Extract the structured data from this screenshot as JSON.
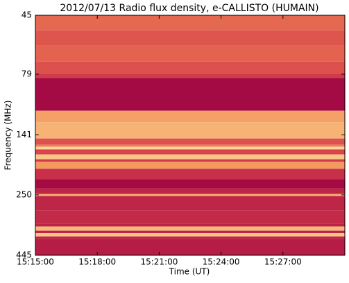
{
  "chart_data": {
    "type": "spectrogram",
    "title": "2012/07/13  Radio flux density, e-CALLISTO (HUMAIN)",
    "xlabel": "Time (UT)",
    "ylabel": "Frequency (MHz)",
    "xlim": [
      54900,
      55800
    ],
    "xticks": [
      {
        "value": 54900,
        "label": "15:15:00"
      },
      {
        "value": 55080,
        "label": "15:18:00"
      },
      {
        "value": 55260,
        "label": "15:21:00"
      },
      {
        "value": 55440,
        "label": "15:24:00"
      },
      {
        "value": 55620,
        "label": "15:27:00"
      }
    ],
    "ylim": [
      445,
      45
    ],
    "yticks": [
      45,
      79,
      141,
      250,
      445
    ],
    "log_y": true,
    "frequency_bins": [
      45,
      52,
      60,
      70,
      79,
      82,
      112,
      125,
      146,
      155,
      158,
      162,
      170,
      178,
      182,
      195,
      215,
      235,
      248,
      253,
      290,
      330,
      338,
      352,
      360,
      372,
      380,
      445
    ],
    "intensity": [
      0.5,
      0.42,
      0.48,
      0.4,
      0.3,
      0.05,
      0.72,
      0.78,
      0.4,
      0.6,
      0.9,
      0.35,
      0.85,
      0.3,
      0.7,
      0.25,
      0.05,
      0.2,
      0.75,
      0.2,
      0.22,
      0.18,
      0.8,
      0.2,
      0.85,
      0.2,
      0.15
    ],
    "colormap": [
      "#9b0043",
      "#d6404a",
      "#f39058",
      "#fff3b0"
    ]
  }
}
